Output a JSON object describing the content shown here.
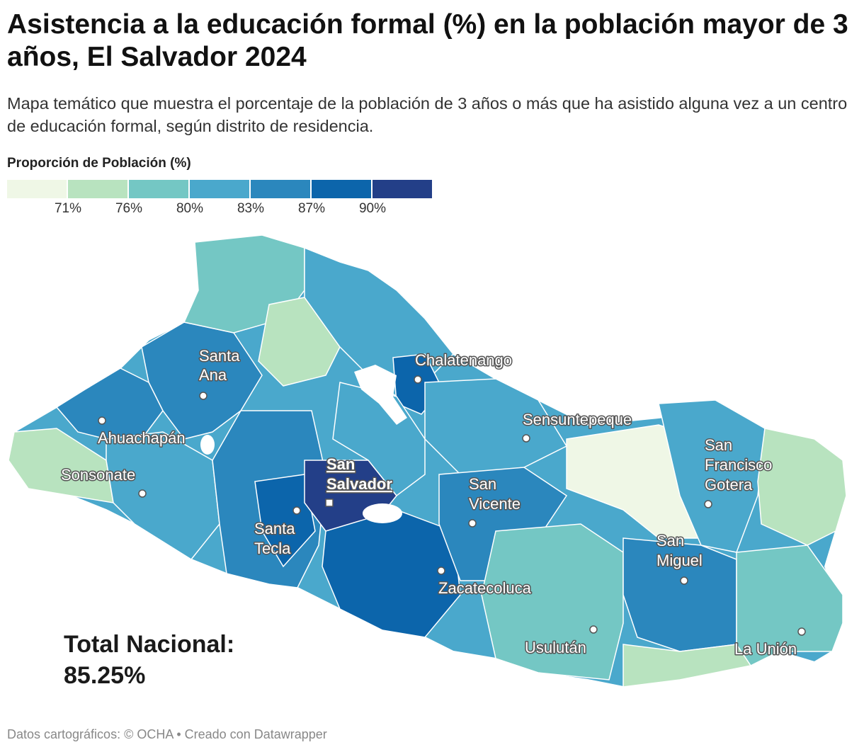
{
  "title": "Asistencia a la educación formal (%) en la población mayor de 3 años, El Salvador 2024",
  "subtitle": "Mapa temático que muestra el porcentaje de la población de 3 años o más que ha asistido alguna vez a un centro de educación formal, según distrito de residencia.",
  "legend": {
    "title": "Proporción de Población (%)",
    "colors": [
      "#eff7e6",
      "#b8e3bf",
      "#74c7c4",
      "#4aa8cc",
      "#2b87bd",
      "#0c65ab",
      "#233f88"
    ],
    "thresholds": [
      "71%",
      "76%",
      "80%",
      "83%",
      "87%",
      "90%"
    ]
  },
  "map": {
    "region": "El Salvador",
    "cities": [
      {
        "name": "Santa Ana",
        "lines": [
          "Santa",
          "Ana"
        ],
        "capital": false
      },
      {
        "name": "Ahuachapán",
        "lines": [
          "Ahuachapán"
        ],
        "capital": false
      },
      {
        "name": "Sonsonate",
        "lines": [
          "Sonsonate"
        ],
        "capital": false
      },
      {
        "name": "Chalatenango",
        "lines": [
          "Chalatenango"
        ],
        "capital": false
      },
      {
        "name": "Sensuntepeque",
        "lines": [
          "Sensuntepeque"
        ],
        "capital": false
      },
      {
        "name": "San Salvador",
        "lines": [
          "San",
          "Salvador"
        ],
        "capital": true
      },
      {
        "name": "Santa Tecla",
        "lines": [
          "Santa",
          "Tecla"
        ],
        "capital": false
      },
      {
        "name": "San Vicente",
        "lines": [
          "San",
          "Vicente"
        ],
        "capital": false
      },
      {
        "name": "Zacatecoluca",
        "lines": [
          "Zacatecoluca"
        ],
        "capital": false
      },
      {
        "name": "San Francisco Gotera",
        "lines": [
          "San",
          "Francisco",
          "Gotera"
        ],
        "capital": false
      },
      {
        "name": "San Miguel",
        "lines": [
          "San",
          "Miguel"
        ],
        "capital": false
      },
      {
        "name": "Usulután",
        "lines": [
          "Usulután"
        ],
        "capital": false
      },
      {
        "name": "La Unión",
        "lines": [
          "La Unión"
        ],
        "capital": false
      }
    ]
  },
  "total": {
    "label": "Total Nacional:",
    "value": "85.25%"
  },
  "footer": "Datos cartográficos: © OCHA  • Creado con Datawrapper"
}
